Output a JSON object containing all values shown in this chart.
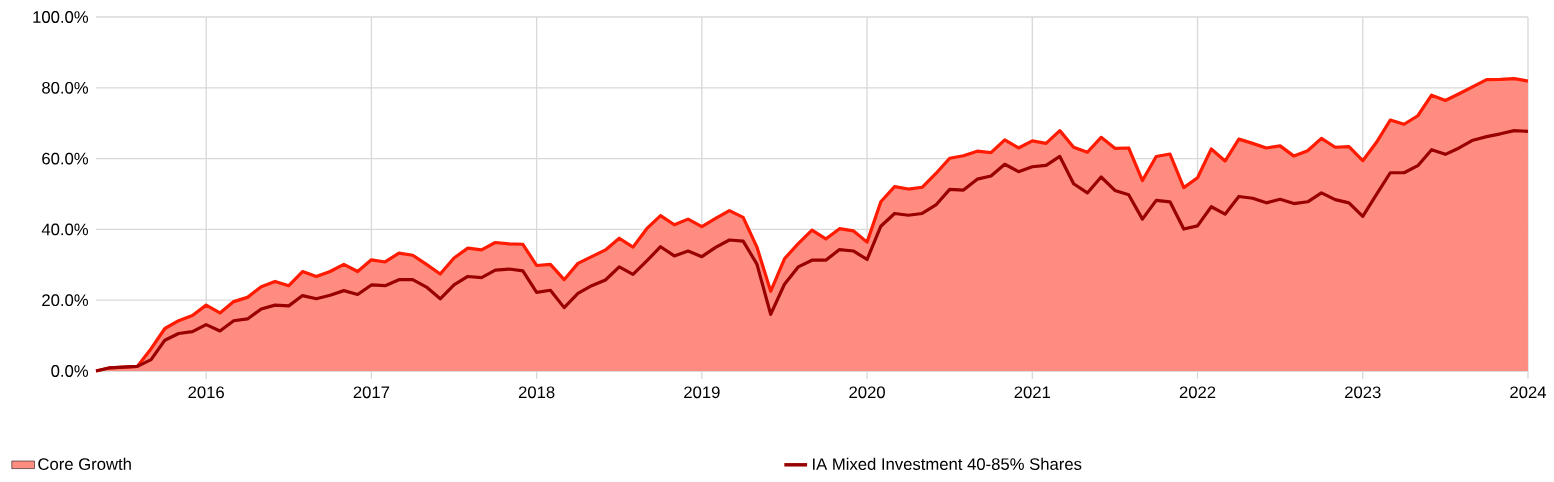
{
  "chart_data": {
    "type": "area",
    "x": [
      "2015-05",
      "2015-06",
      "2015-07",
      "2015-08",
      "2015-09",
      "2015-10",
      "2015-11",
      "2015-12",
      "2016-01",
      "2016-02",
      "2016-03",
      "2016-04",
      "2016-05",
      "2016-06",
      "2016-07",
      "2016-08",
      "2016-09",
      "2016-10",
      "2016-11",
      "2016-12",
      "2017-01",
      "2017-02",
      "2017-03",
      "2017-04",
      "2017-05",
      "2017-06",
      "2017-07",
      "2017-08",
      "2017-09",
      "2017-10",
      "2017-11",
      "2017-12",
      "2018-01",
      "2018-02",
      "2018-03",
      "2018-04",
      "2018-05",
      "2018-06",
      "2018-07",
      "2018-08",
      "2018-09",
      "2018-10",
      "2018-11",
      "2018-12",
      "2019-01",
      "2019-02",
      "2019-03",
      "2019-04",
      "2019-05",
      "2019-06",
      "2019-07",
      "2019-08",
      "2019-09",
      "2019-10",
      "2019-11",
      "2019-12",
      "2020-01",
      "2020-02",
      "2020-03",
      "2020-04",
      "2020-05",
      "2020-06",
      "2020-07",
      "2020-08",
      "2020-09",
      "2020-10",
      "2020-11",
      "2020-12",
      "2021-01",
      "2021-02",
      "2021-03",
      "2021-04",
      "2021-05",
      "2021-06",
      "2021-07",
      "2021-08",
      "2021-09",
      "2021-10",
      "2021-11",
      "2021-12",
      "2022-01",
      "2022-02",
      "2022-03",
      "2022-04",
      "2022-05",
      "2022-06",
      "2022-07",
      "2022-08",
      "2022-09",
      "2022-10",
      "2022-11",
      "2022-12",
      "2023-01",
      "2023-02",
      "2023-03",
      "2023-04",
      "2023-05",
      "2023-06",
      "2023-07",
      "2023-08",
      "2023-09",
      "2023-10",
      "2023-11",
      "2023-12",
      "2024-01"
    ],
    "xlim": [
      "2015-05",
      "2024-01"
    ],
    "xticks": [
      {
        "value": "2016-01",
        "label": "2016"
      },
      {
        "value": "2017-01",
        "label": "2017"
      },
      {
        "value": "2018-01",
        "label": "2018"
      },
      {
        "value": "2019-01",
        "label": "2019"
      },
      {
        "value": "2020-01",
        "label": "2020"
      },
      {
        "value": "2021-01",
        "label": "2021"
      },
      {
        "value": "2022-01",
        "label": "2022"
      },
      {
        "value": "2023-01",
        "label": "2023"
      },
      {
        "value": "2024-01",
        "label": "2024"
      }
    ],
    "ylim": [
      0,
      100
    ],
    "yticks": [
      {
        "value": 0,
        "label": "0.0%"
      },
      {
        "value": 20,
        "label": "20.0%"
      },
      {
        "value": 40,
        "label": "40.0%"
      },
      {
        "value": 60,
        "label": "60.0%"
      },
      {
        "value": 80,
        "label": "80.0%"
      },
      {
        "value": 100,
        "label": "100.0%"
      }
    ],
    "grid": true,
    "legend": "bottom",
    "series": [
      {
        "name": "Core Growth",
        "color": "#ff1a00",
        "values": [
          0,
          0.9,
          1.1,
          1.3,
          6.3,
          12.0,
          14.2,
          15.7,
          18.6,
          16.4,
          19.6,
          20.8,
          23.8,
          25.3,
          24.1,
          28.1,
          26.7,
          28.1,
          30.1,
          28.1,
          31.4,
          30.8,
          33.3,
          32.7,
          30.1,
          27.4,
          31.9,
          34.7,
          34.2,
          36.3,
          35.9,
          35.8,
          29.8,
          30.1,
          25.8,
          30.4,
          32.3,
          34.2,
          37.5,
          35.0,
          40.2,
          43.9,
          41.3,
          42.9,
          40.8,
          43.1,
          45.3,
          43.4,
          35.0,
          22.5,
          31.7,
          36.0,
          39.8,
          37.3,
          40.2,
          39.6,
          36.4,
          47.8,
          52.1,
          51.4,
          51.9,
          55.8,
          60.1,
          60.8,
          62.1,
          61.7,
          65.3,
          63.0,
          65.0,
          64.3,
          67.9,
          63.2,
          61.8,
          66.0,
          62.9,
          63.0,
          53.8,
          60.6,
          61.3,
          51.8,
          54.6,
          62.7,
          59.3,
          65.5,
          64.3,
          63.0,
          63.6,
          60.7,
          62.2,
          65.7,
          63.2,
          63.4,
          59.4,
          64.6,
          70.9,
          69.7,
          72.1,
          77.9,
          76.4,
          78.3,
          80.3,
          82.3,
          82.4,
          82.6,
          81.9
        ]
      },
      {
        "name": "IA Mixed Investment 40-85% Shares",
        "type": "line",
        "color": "#990000",
        "values": [
          0,
          0.9,
          1.1,
          1.3,
          3.2,
          8.7,
          10.6,
          11.1,
          13.1,
          11.3,
          14.2,
          14.7,
          17.5,
          18.6,
          18.4,
          21.3,
          20.4,
          21.4,
          22.7,
          21.6,
          24.3,
          24.1,
          25.8,
          25.8,
          23.7,
          20.4,
          24.3,
          26.7,
          26.4,
          28.5,
          28.8,
          28.3,
          22.2,
          22.8,
          17.9,
          21.9,
          24.1,
          25.7,
          29.4,
          27.3,
          31.1,
          35.1,
          32.5,
          33.9,
          32.3,
          34.9,
          37.0,
          36.7,
          30.2,
          16.0,
          24.5,
          29.4,
          31.3,
          31.3,
          34.3,
          33.9,
          31.5,
          40.9,
          44.5,
          44.0,
          44.5,
          46.9,
          51.3,
          51.1,
          54.2,
          55.1,
          58.4,
          56.3,
          57.7,
          58.1,
          60.6,
          52.9,
          50.3,
          54.8,
          51.0,
          49.8,
          42.9,
          48.2,
          47.8,
          40.1,
          41.0,
          46.4,
          44.3,
          49.3,
          48.8,
          47.5,
          48.5,
          47.3,
          47.8,
          50.3,
          48.4,
          47.5,
          43.7,
          49.9,
          56.0,
          56.0,
          58.0,
          62.5,
          61.2,
          63.0,
          65.2,
          66.2,
          67.0,
          67.9,
          67.7
        ]
      }
    ]
  }
}
